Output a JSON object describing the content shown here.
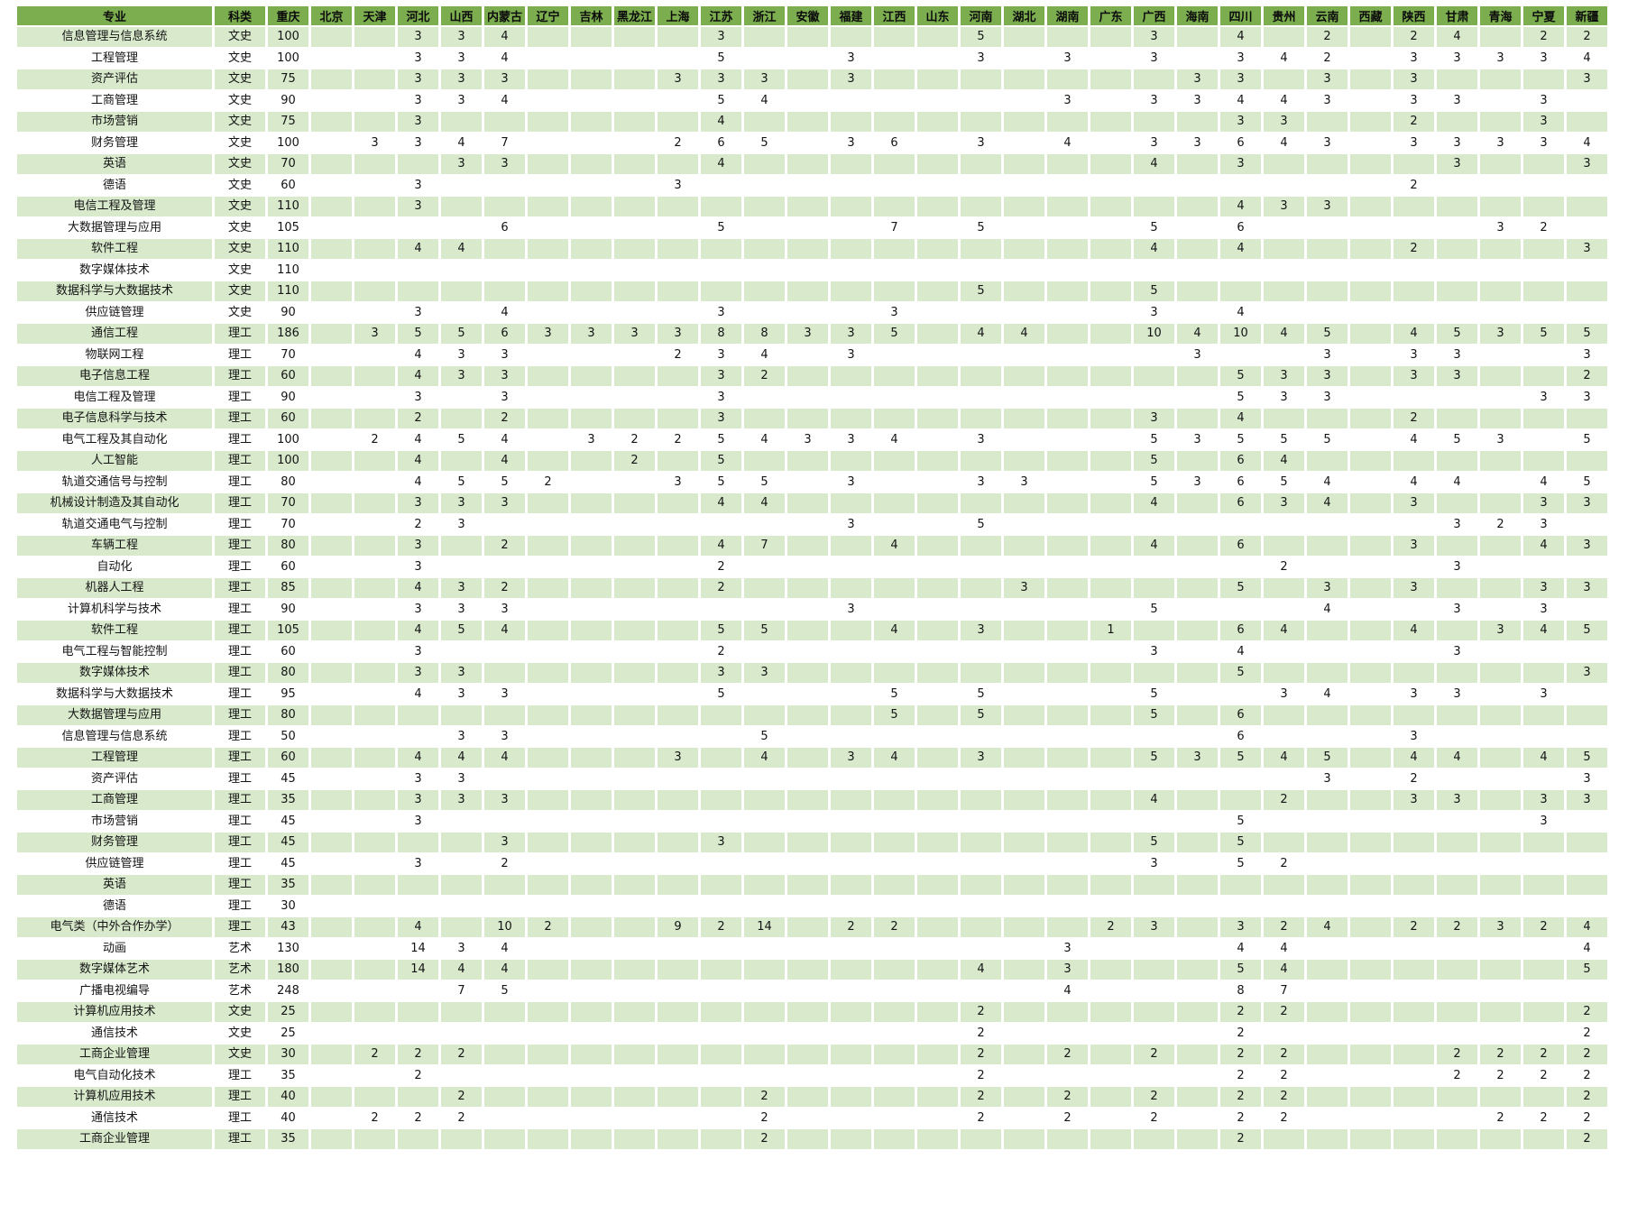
{
  "table": {
    "columns": [
      "专业",
      "科类",
      "重庆",
      "北京",
      "天津",
      "河北",
      "山西",
      "内蒙古",
      "辽宁",
      "吉林",
      "黑龙江",
      "上海",
      "江苏",
      "浙江",
      "安徽",
      "福建",
      "江西",
      "山东",
      "河南",
      "湖北",
      "湖南",
      "广东",
      "广西",
      "海南",
      "四川",
      "贵州",
      "云南",
      "西藏",
      "陕西",
      "甘肃",
      "青海",
      "宁夏",
      "新疆"
    ],
    "rows": [
      {
        "major": "信息管理与信息系统",
        "category": "文史",
        "quotas": {
          "重庆": "100",
          "河北": "3",
          "山西": "3",
          "内蒙古": "4",
          "江苏": "3",
          "河南": "5",
          "广西": "3",
          "四川": "4",
          "云南": "2",
          "陕西": "2",
          "甘肃": "4",
          "宁夏": "2",
          "新疆": "2"
        }
      },
      {
        "major": "工程管理",
        "category": "文史",
        "quotas": {
          "重庆": "100",
          "河北": "3",
          "山西": "3",
          "内蒙古": "4",
          "江苏": "5",
          "福建": "3",
          "河南": "3",
          "湖南": "3",
          "广西": "3",
          "四川": "3",
          "贵州": "4",
          "云南": "2",
          "陕西": "3",
          "甘肃": "3",
          "青海": "3",
          "宁夏": "3",
          "新疆": "4"
        }
      },
      {
        "major": "资产评估",
        "category": "文史",
        "quotas": {
          "重庆": "75",
          "河北": "3",
          "山西": "3",
          "内蒙古": "3",
          "上海": "3",
          "江苏": "3",
          "浙江": "3",
          "福建": "3",
          "海南": "3",
          "四川": "3",
          "云南": "3",
          "陕西": "3",
          "新疆": "3"
        }
      },
      {
        "major": "工商管理",
        "category": "文史",
        "quotas": {
          "重庆": "90",
          "河北": "3",
          "山西": "3",
          "内蒙古": "4",
          "江苏": "5",
          "浙江": "4",
          "湖南": "3",
          "广西": "3",
          "海南": "3",
          "四川": "4",
          "贵州": "4",
          "云南": "3",
          "陕西": "3",
          "甘肃": "3",
          "宁夏": "3"
        }
      },
      {
        "major": "市场营销",
        "category": "文史",
        "quotas": {
          "重庆": "75",
          "河北": "3",
          "江苏": "4",
          "四川": "3",
          "贵州": "3",
          "陕西": "2",
          "宁夏": "3"
        }
      },
      {
        "major": "财务管理",
        "category": "文史",
        "quotas": {
          "重庆": "100",
          "天津": "3",
          "河北": "3",
          "山西": "4",
          "内蒙古": "7",
          "上海": "2",
          "江苏": "6",
          "浙江": "5",
          "福建": "3",
          "江西": "6",
          "河南": "3",
          "湖南": "4",
          "广西": "3",
          "海南": "3",
          "四川": "6",
          "贵州": "4",
          "云南": "3",
          "陕西": "3",
          "甘肃": "3",
          "青海": "3",
          "宁夏": "3",
          "新疆": "4"
        }
      },
      {
        "major": "英语",
        "category": "文史",
        "quotas": {
          "重庆": "70",
          "山西": "3",
          "内蒙古": "3",
          "江苏": "4",
          "广西": "4",
          "四川": "3",
          "甘肃": "3",
          "新疆": "3"
        }
      },
      {
        "major": "德语",
        "category": "文史",
        "quotas": {
          "重庆": "60",
          "河北": "3",
          "上海": "3",
          "陕西": "2"
        }
      },
      {
        "major": "电信工程及管理",
        "category": "文史",
        "quotas": {
          "重庆": "110",
          "河北": "3",
          "四川": "4",
          "贵州": "3",
          "云南": "3"
        }
      },
      {
        "major": "大数据管理与应用",
        "category": "文史",
        "quotas": {
          "重庆": "105",
          "内蒙古": "6",
          "江苏": "5",
          "江西": "7",
          "河南": "5",
          "广西": "5",
          "四川": "6",
          "青海": "3",
          "宁夏": "2"
        }
      },
      {
        "major": "软件工程",
        "category": "文史",
        "quotas": {
          "重庆": "110",
          "河北": "4",
          "山西": "4",
          "广西": "4",
          "四川": "4",
          "陕西": "2",
          "新疆": "3"
        }
      },
      {
        "major": "数字媒体技术",
        "category": "文史",
        "quotas": {
          "重庆": "110"
        }
      },
      {
        "major": "数据科学与大数据技术",
        "category": "文史",
        "quotas": {
          "重庆": "110",
          "河南": "5",
          "广西": "5"
        }
      },
      {
        "major": "供应链管理",
        "category": "文史",
        "quotas": {
          "重庆": "90",
          "河北": "3",
          "内蒙古": "4",
          "江苏": "3",
          "江西": "3",
          "广西": "3",
          "四川": "4"
        }
      },
      {
        "major": "通信工程",
        "category": "理工",
        "quotas": {
          "重庆": "186",
          "天津": "3",
          "河北": "5",
          "山西": "5",
          "内蒙古": "6",
          "辽宁": "3",
          "吉林": "3",
          "黑龙江": "3",
          "上海": "3",
          "江苏": "8",
          "浙江": "8",
          "安徽": "3",
          "福建": "3",
          "江西": "5",
          "河南": "4",
          "湖北": "4",
          "广西": "10",
          "海南": "4",
          "四川": "10",
          "贵州": "4",
          "云南": "5",
          "陕西": "4",
          "甘肃": "5",
          "青海": "3",
          "宁夏": "5",
          "新疆": "5"
        }
      },
      {
        "major": "物联网工程",
        "category": "理工",
        "quotas": {
          "重庆": "70",
          "河北": "4",
          "山西": "3",
          "内蒙古": "3",
          "上海": "2",
          "江苏": "3",
          "浙江": "4",
          "福建": "3",
          "海南": "3",
          "云南": "3",
          "陕西": "3",
          "甘肃": "3",
          "新疆": "3"
        }
      },
      {
        "major": "电子信息工程",
        "category": "理工",
        "quotas": {
          "重庆": "60",
          "河北": "4",
          "山西": "3",
          "内蒙古": "3",
          "江苏": "3",
          "浙江": "2",
          "四川": "5",
          "贵州": "3",
          "云南": "3",
          "陕西": "3",
          "甘肃": "3",
          "新疆": "2"
        }
      },
      {
        "major": "电信工程及管理",
        "category": "理工",
        "quotas": {
          "重庆": "90",
          "河北": "3",
          "内蒙古": "3",
          "江苏": "3",
          "四川": "5",
          "贵州": "3",
          "云南": "3",
          "宁夏": "3",
          "新疆": "3"
        }
      },
      {
        "major": "电子信息科学与技术",
        "category": "理工",
        "quotas": {
          "重庆": "60",
          "河北": "2",
          "内蒙古": "2",
          "江苏": "3",
          "广西": "3",
          "四川": "4",
          "陕西": "2"
        }
      },
      {
        "major": "电气工程及其自动化",
        "category": "理工",
        "quotas": {
          "重庆": "100",
          "天津": "2",
          "河北": "4",
          "山西": "5",
          "内蒙古": "4",
          "吉林": "3",
          "黑龙江": "2",
          "上海": "2",
          "江苏": "5",
          "浙江": "4",
          "安徽": "3",
          "福建": "3",
          "江西": "4",
          "河南": "3",
          "广西": "5",
          "海南": "3",
          "四川": "5",
          "贵州": "5",
          "云南": "5",
          "陕西": "4",
          "甘肃": "5",
          "青海": "3",
          "新疆": "5"
        }
      },
      {
        "major": "人工智能",
        "category": "理工",
        "quotas": {
          "重庆": "100",
          "河北": "4",
          "内蒙古": "4",
          "黑龙江": "2",
          "江苏": "5",
          "广西": "5",
          "四川": "6",
          "贵州": "4"
        }
      },
      {
        "major": "轨道交通信号与控制",
        "category": "理工",
        "quotas": {
          "重庆": "80",
          "河北": "4",
          "山西": "5",
          "内蒙古": "5",
          "辽宁": "2",
          "上海": "3",
          "江苏": "5",
          "浙江": "5",
          "福建": "3",
          "河南": "3",
          "湖北": "3",
          "广西": "5",
          "海南": "3",
          "四川": "6",
          "贵州": "5",
          "云南": "4",
          "陕西": "4",
          "甘肃": "4",
          "宁夏": "4",
          "新疆": "5"
        }
      },
      {
        "major": "机械设计制造及其自动化",
        "category": "理工",
        "quotas": {
          "重庆": "70",
          "河北": "3",
          "山西": "3",
          "内蒙古": "3",
          "江苏": "4",
          "浙江": "4",
          "广西": "4",
          "四川": "6",
          "贵州": "3",
          "云南": "4",
          "陕西": "3",
          "宁夏": "3",
          "新疆": "3"
        }
      },
      {
        "major": "轨道交通电气与控制",
        "category": "理工",
        "quotas": {
          "重庆": "70",
          "河北": "2",
          "山西": "3",
          "福建": "3",
          "河南": "5",
          "甘肃": "3",
          "青海": "2",
          "宁夏": "3"
        }
      },
      {
        "major": "车辆工程",
        "category": "理工",
        "quotas": {
          "重庆": "80",
          "河北": "3",
          "内蒙古": "2",
          "江苏": "4",
          "浙江": "7",
          "江西": "4",
          "广西": "4",
          "四川": "6",
          "陕西": "3",
          "宁夏": "4",
          "新疆": "3"
        }
      },
      {
        "major": "自动化",
        "category": "理工",
        "quotas": {
          "重庆": "60",
          "河北": "3",
          "江苏": "2",
          "贵州": "2",
          "甘肃": "3"
        }
      },
      {
        "major": "机器人工程",
        "category": "理工",
        "quotas": {
          "重庆": "85",
          "河北": "4",
          "山西": "3",
          "内蒙古": "2",
          "江苏": "2",
          "湖北": "3",
          "四川": "5",
          "云南": "3",
          "陕西": "3",
          "宁夏": "3",
          "新疆": "3"
        }
      },
      {
        "major": "计算机科学与技术",
        "category": "理工",
        "quotas": {
          "重庆": "90",
          "河北": "3",
          "山西": "3",
          "内蒙古": "3",
          "福建": "3",
          "广西": "5",
          "云南": "4",
          "甘肃": "3",
          "宁夏": "3"
        }
      },
      {
        "major": "软件工程",
        "category": "理工",
        "quotas": {
          "重庆": "105",
          "河北": "4",
          "山西": "5",
          "内蒙古": "4",
          "江苏": "5",
          "浙江": "5",
          "江西": "4",
          "河南": "3",
          "广东": "1",
          "四川": "6",
          "贵州": "4",
          "陕西": "4",
          "青海": "3",
          "宁夏": "4",
          "新疆": "5"
        }
      },
      {
        "major": "电气工程与智能控制",
        "category": "理工",
        "quotas": {
          "重庆": "60",
          "河北": "3",
          "江苏": "2",
          "广西": "3",
          "四川": "4",
          "甘肃": "3"
        }
      },
      {
        "major": "数字媒体技术",
        "category": "理工",
        "quotas": {
          "重庆": "80",
          "河北": "3",
          "山西": "3",
          "江苏": "3",
          "浙江": "3",
          "四川": "5",
          "新疆": "3"
        }
      },
      {
        "major": "数据科学与大数据技术",
        "category": "理工",
        "quotas": {
          "重庆": "95",
          "河北": "4",
          "山西": "3",
          "内蒙古": "3",
          "江苏": "5",
          "江西": "5",
          "河南": "5",
          "广西": "5",
          "贵州": "3",
          "云南": "4",
          "陕西": "3",
          "甘肃": "3",
          "宁夏": "3"
        }
      },
      {
        "major": "大数据管理与应用",
        "category": "理工",
        "quotas": {
          "重庆": "80",
          "江西": "5",
          "河南": "5",
          "广西": "5",
          "四川": "6"
        }
      },
      {
        "major": "信息管理与信息系统",
        "category": "理工",
        "quotas": {
          "重庆": "50",
          "山西": "3",
          "内蒙古": "3",
          "浙江": "5",
          "四川": "6",
          "陕西": "3"
        }
      },
      {
        "major": "工程管理",
        "category": "理工",
        "quotas": {
          "重庆": "60",
          "河北": "4",
          "山西": "4",
          "内蒙古": "4",
          "上海": "3",
          "浙江": "4",
          "福建": "3",
          "江西": "4",
          "河南": "3",
          "广西": "5",
          "海南": "3",
          "四川": "5",
          "贵州": "4",
          "云南": "5",
          "陕西": "4",
          "甘肃": "4",
          "宁夏": "4",
          "新疆": "5"
        }
      },
      {
        "major": "资产评估",
        "category": "理工",
        "quotas": {
          "重庆": "45",
          "河北": "3",
          "山西": "3",
          "云南": "3",
          "陕西": "2",
          "新疆": "3"
        }
      },
      {
        "major": "工商管理",
        "category": "理工",
        "quotas": {
          "重庆": "35",
          "河北": "3",
          "山西": "3",
          "内蒙古": "3",
          "广西": "4",
          "贵州": "2",
          "陕西": "3",
          "甘肃": "3",
          "宁夏": "3",
          "新疆": "3"
        }
      },
      {
        "major": "市场营销",
        "category": "理工",
        "quotas": {
          "重庆": "45",
          "河北": "3",
          "四川": "5",
          "宁夏": "3"
        }
      },
      {
        "major": "财务管理",
        "category": "理工",
        "quotas": {
          "重庆": "45",
          "内蒙古": "3",
          "江苏": "3",
          "广西": "5",
          "四川": "5"
        }
      },
      {
        "major": "供应链管理",
        "category": "理工",
        "quotas": {
          "重庆": "45",
          "河北": "3",
          "内蒙古": "2",
          "广西": "3",
          "四川": "5",
          "贵州": "2"
        }
      },
      {
        "major": "英语",
        "category": "理工",
        "quotas": {
          "重庆": "35"
        }
      },
      {
        "major": "德语",
        "category": "理工",
        "quotas": {
          "重庆": "30"
        }
      },
      {
        "major": "电气类（中外合作办学）",
        "category": "理工",
        "quotas": {
          "重庆": "43",
          "河北": "4",
          "内蒙古": "10",
          "辽宁": "2",
          "上海": "9",
          "江苏": "2",
          "浙江": "14",
          "福建": "2",
          "江西": "2",
          "广东": "2",
          "广西": "3",
          "四川": "3",
          "贵州": "2",
          "云南": "4",
          "陕西": "2",
          "甘肃": "2",
          "青海": "3",
          "宁夏": "2",
          "新疆": "4"
        }
      },
      {
        "major": "动画",
        "category": "艺术",
        "quotas": {
          "重庆": "130",
          "河北": "14",
          "山西": "3",
          "内蒙古": "4",
          "湖南": "3",
          "四川": "4",
          "贵州": "4",
          "新疆": "4"
        }
      },
      {
        "major": "数字媒体艺术",
        "category": "艺术",
        "quotas": {
          "重庆": "180",
          "河北": "14",
          "山西": "4",
          "内蒙古": "4",
          "河南": "4",
          "湖南": "3",
          "四川": "5",
          "贵州": "4",
          "新疆": "5"
        }
      },
      {
        "major": "广播电视编导",
        "category": "艺术",
        "quotas": {
          "重庆": "248",
          "山西": "7",
          "内蒙古": "5",
          "湖南": "4",
          "四川": "8",
          "贵州": "7"
        }
      },
      {
        "major": "计算机应用技术",
        "category": "文史",
        "quotas": {
          "重庆": "25",
          "河南": "2",
          "四川": "2",
          "贵州": "2",
          "新疆": "2"
        }
      },
      {
        "major": "通信技术",
        "category": "文史",
        "quotas": {
          "重庆": "25",
          "河南": "2",
          "四川": "2",
          "新疆": "2"
        }
      },
      {
        "major": "工商企业管理",
        "category": "文史",
        "quotas": {
          "重庆": "30",
          "天津": "2",
          "河北": "2",
          "山西": "2",
          "河南": "2",
          "湖南": "2",
          "广西": "2",
          "四川": "2",
          "贵州": "2",
          "甘肃": "2",
          "青海": "2",
          "宁夏": "2",
          "新疆": "2"
        }
      },
      {
        "major": "电气自动化技术",
        "category": "理工",
        "quotas": {
          "重庆": "35",
          "河北": "2",
          "河南": "2",
          "四川": "2",
          "贵州": "2",
          "甘肃": "2",
          "青海": "2",
          "宁夏": "2",
          "新疆": "2"
        }
      },
      {
        "major": "计算机应用技术",
        "category": "理工",
        "quotas": {
          "重庆": "40",
          "山西": "2",
          "浙江": "2",
          "河南": "2",
          "湖南": "2",
          "广西": "2",
          "四川": "2",
          "贵州": "2",
          "新疆": "2"
        }
      },
      {
        "major": "通信技术",
        "category": "理工",
        "quotas": {
          "重庆": "40",
          "天津": "2",
          "河北": "2",
          "山西": "2",
          "浙江": "2",
          "河南": "2",
          "湖南": "2",
          "广西": "2",
          "四川": "2",
          "贵州": "2",
          "青海": "2",
          "宁夏": "2",
          "新疆": "2"
        }
      },
      {
        "major": "工商企业管理",
        "category": "理工",
        "quotas": {
          "重庆": "35",
          "浙江": "2",
          "四川": "2",
          "新疆": "2"
        }
      }
    ]
  },
  "colors": {
    "header_bg": "#7CAE4F",
    "alt_row_bg": "#D8E9CC",
    "text": "#141414"
  }
}
